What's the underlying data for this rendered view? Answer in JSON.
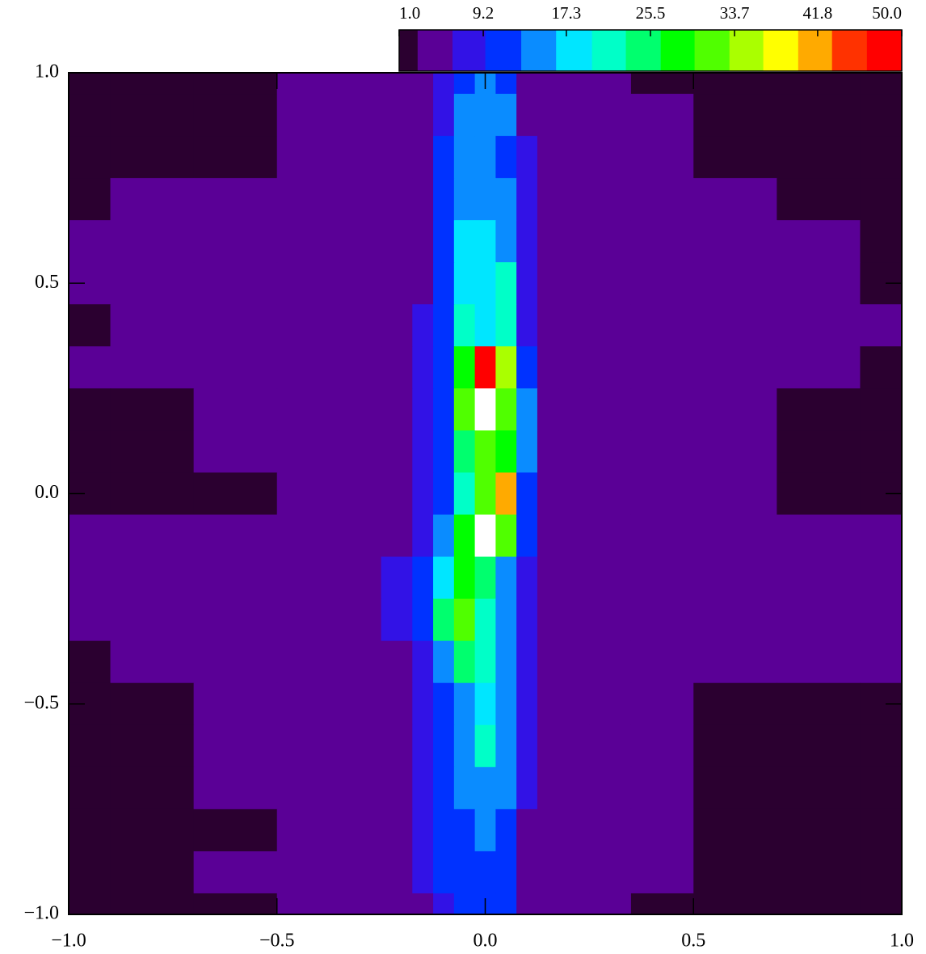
{
  "chart_data": {
    "type": "contour",
    "x": [
      -1,
      -0.8,
      -0.6,
      -0.4,
      -0.3,
      -0.2,
      -0.15,
      -0.1,
      -0.05,
      0,
      0.05,
      0.1,
      0.15,
      0.2,
      0.3,
      0.4,
      0.6,
      0.8,
      1
    ],
    "y": [
      1,
      0.9,
      0.8,
      0.7,
      0.6,
      0.5,
      0.4,
      0.3,
      0.2,
      0.1,
      0,
      -0.1,
      -0.2,
      -0.3,
      -0.4,
      -0.5,
      -0.6,
      -0.7,
      -0.8,
      -0.9,
      -1
    ],
    "z": [
      [
        2,
        2,
        2.5,
        3,
        4,
        5,
        6,
        9,
        12,
        13,
        11,
        6,
        5,
        4,
        3,
        2.5,
        2,
        2,
        2
      ],
      [
        2,
        2,
        2.5,
        3,
        4,
        5,
        6,
        9,
        14,
        16,
        14,
        6,
        5,
        4,
        3,
        3,
        2,
        2,
        2
      ],
      [
        2,
        2,
        2,
        3,
        4,
        5,
        6,
        10,
        13,
        14,
        12,
        7,
        5,
        4,
        3,
        3,
        2,
        2,
        2
      ],
      [
        2,
        3,
        3,
        3,
        4,
        5,
        6,
        11,
        15,
        14,
        13,
        7,
        5,
        4,
        3,
        3,
        3,
        2,
        2
      ],
      [
        3,
        3,
        3,
        4,
        4,
        5,
        6,
        10,
        18,
        17,
        16,
        8,
        5,
        4,
        3,
        3,
        3,
        3,
        2
      ],
      [
        3,
        3,
        3,
        3,
        4,
        5,
        6,
        10,
        18,
        17,
        22,
        9,
        5,
        4,
        3,
        3,
        3,
        3,
        2
      ],
      [
        2,
        3,
        3,
        4,
        5,
        6,
        7,
        11,
        20,
        18,
        20,
        9,
        6,
        4,
        4,
        3,
        3,
        3,
        3
      ],
      [
        3,
        3,
        3,
        4,
        5,
        6,
        7,
        12,
        28,
        48,
        35,
        12,
        6,
        5,
        4,
        3,
        3,
        3,
        2
      ],
      [
        2,
        2,
        3,
        4,
        5,
        6,
        7,
        12,
        30,
        51,
        32,
        14,
        6,
        5,
        4,
        3,
        3,
        2,
        2
      ],
      [
        2,
        2,
        3,
        4,
        5,
        6,
        7,
        12,
        26,
        30,
        28,
        15,
        6,
        4,
        4,
        3,
        3,
        2,
        2
      ],
      [
        2,
        2,
        2,
        3,
        4,
        5,
        7,
        12,
        22,
        30,
        40,
        12,
        6,
        4,
        3,
        3,
        3,
        2,
        2
      ],
      [
        3,
        3,
        3,
        4,
        5,
        6,
        9,
        16,
        28,
        52,
        30,
        11,
        6,
        4,
        4,
        3,
        3,
        3,
        3
      ],
      [
        4,
        4,
        3,
        4,
        5,
        7,
        10,
        18,
        28,
        25,
        15,
        9,
        5,
        4,
        4,
        3,
        3,
        4,
        4
      ],
      [
        3,
        3,
        3,
        4,
        5,
        7,
        11,
        26,
        30,
        22,
        14,
        8,
        5,
        4,
        3,
        3,
        3,
        3,
        3
      ],
      [
        2,
        3,
        3,
        4,
        5,
        6,
        9,
        16,
        25,
        22,
        15,
        8,
        5,
        4,
        3,
        3,
        3,
        3,
        3
      ],
      [
        2,
        2,
        3,
        4,
        5,
        6,
        7,
        11,
        16,
        18,
        14,
        7,
        5,
        4,
        3,
        3,
        2,
        2,
        2
      ],
      [
        2,
        2,
        3,
        4,
        5,
        6,
        7,
        10,
        16,
        20,
        15,
        7,
        5,
        4,
        3,
        3,
        2,
        2,
        2
      ],
      [
        2,
        2,
        3,
        3,
        4,
        5,
        7,
        10,
        14,
        16,
        13,
        7,
        5,
        4,
        3,
        3,
        2,
        2,
        2
      ],
      [
        2,
        2,
        2,
        3,
        4,
        6,
        7,
        10,
        12,
        14,
        11,
        6,
        5,
        4,
        3,
        3,
        2,
        2,
        2
      ],
      [
        2,
        2,
        3,
        3,
        4,
        5,
        7,
        10,
        11,
        12,
        10,
        6,
        5,
        4,
        3,
        3,
        2,
        2,
        2
      ],
      [
        2,
        2,
        2,
        3,
        4,
        5,
        6,
        9,
        10,
        11,
        10,
        6,
        4,
        4,
        3,
        2,
        2,
        2,
        2
      ]
    ],
    "levels": [
      1,
      2.8,
      6.2,
      9.4,
      12.9,
      16.3,
      19.8,
      23.1,
      26.5,
      29.8,
      33.2,
      36.5,
      39.9,
      43.2,
      46.6,
      50
    ],
    "colors": [
      "#2b0030",
      "#5a0096",
      "#3212e6",
      "#0032ff",
      "#0a8cff",
      "#00e6ff",
      "#00ffc8",
      "#00ff6e",
      "#00ff00",
      "#50ff00",
      "#aaff00",
      "#ffff00",
      "#ffaa00",
      "#ff3200",
      "#ff0000"
    ],
    "over_color": "#ffffff",
    "clim": [
      1,
      50
    ],
    "cticks": [
      {
        "value": 1,
        "label": "1.0"
      },
      9.2,
      17.3,
      25.5,
      33.7,
      41.8,
      {
        "value": 50,
        "label": "50.0"
      }
    ],
    "xlim": [
      -1,
      1
    ],
    "ylim": [
      -1,
      1
    ],
    "xticks": [
      {
        "value": -1,
        "label": "−1.0"
      },
      {
        "value": -0.5,
        "label": "−0.5"
      },
      {
        "value": 0,
        "label": "0.0"
      },
      {
        "value": 0.5,
        "label": "0.5"
      },
      {
        "value": 1,
        "label": "1.0"
      }
    ],
    "yticks": [
      {
        "value": -1,
        "label": "−1.0"
      },
      {
        "value": -0.5,
        "label": "−0.5"
      },
      {
        "value": 0,
        "label": "0.0"
      },
      {
        "value": 0.5,
        "label": "0.5"
      },
      {
        "value": 1,
        "label": "1.0"
      }
    ]
  }
}
